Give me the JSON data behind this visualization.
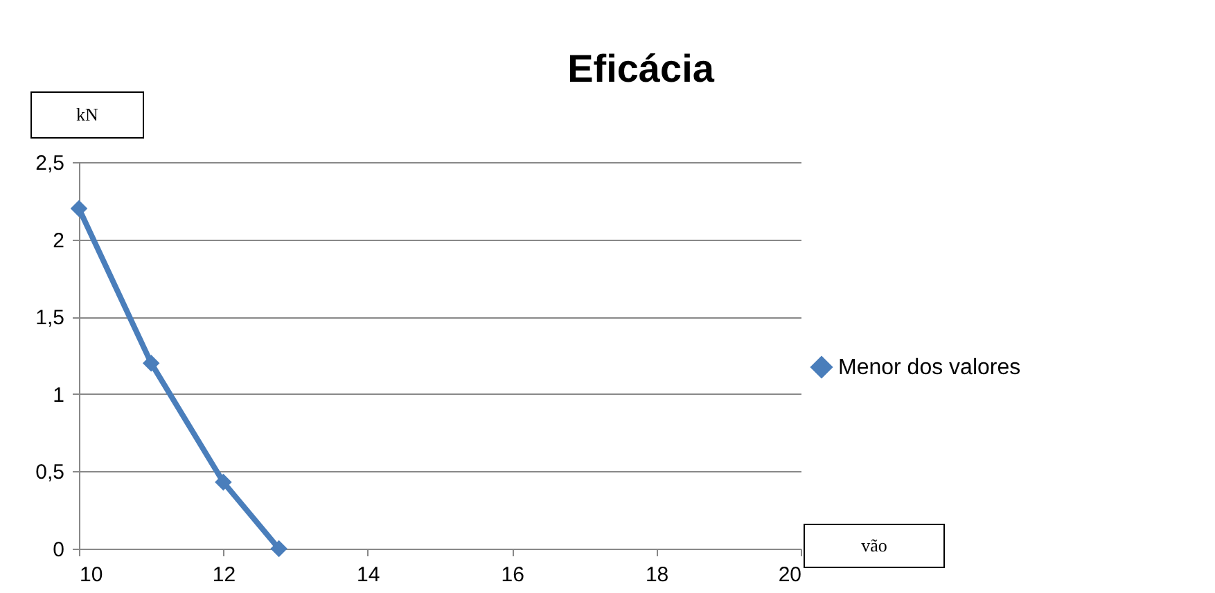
{
  "chart_data": {
    "type": "line",
    "title": "Eficácia",
    "xlabel": "vão",
    "ylabel": "kN",
    "x": [
      10,
      11,
      12,
      12.77
    ],
    "series": [
      {
        "name": "Menor dos valores",
        "color": "#4a7ebb",
        "values": [
          2.2,
          1.2,
          0.43,
          0
        ]
      }
    ],
    "xlim": [
      10,
      20
    ],
    "xticks": [
      10,
      12,
      14,
      16,
      18,
      20
    ],
    "ylim": [
      0,
      2.5
    ],
    "yticks": [
      0,
      {
        "value": 0.5,
        "label": "0,5"
      },
      1,
      {
        "value": 1.5,
        "label": "1,5"
      },
      2,
      {
        "value": 2.5,
        "label": "2,5"
      }
    ],
    "grid": "y",
    "legend": "right",
    "marker": "diamond",
    "line_style": "solid"
  }
}
